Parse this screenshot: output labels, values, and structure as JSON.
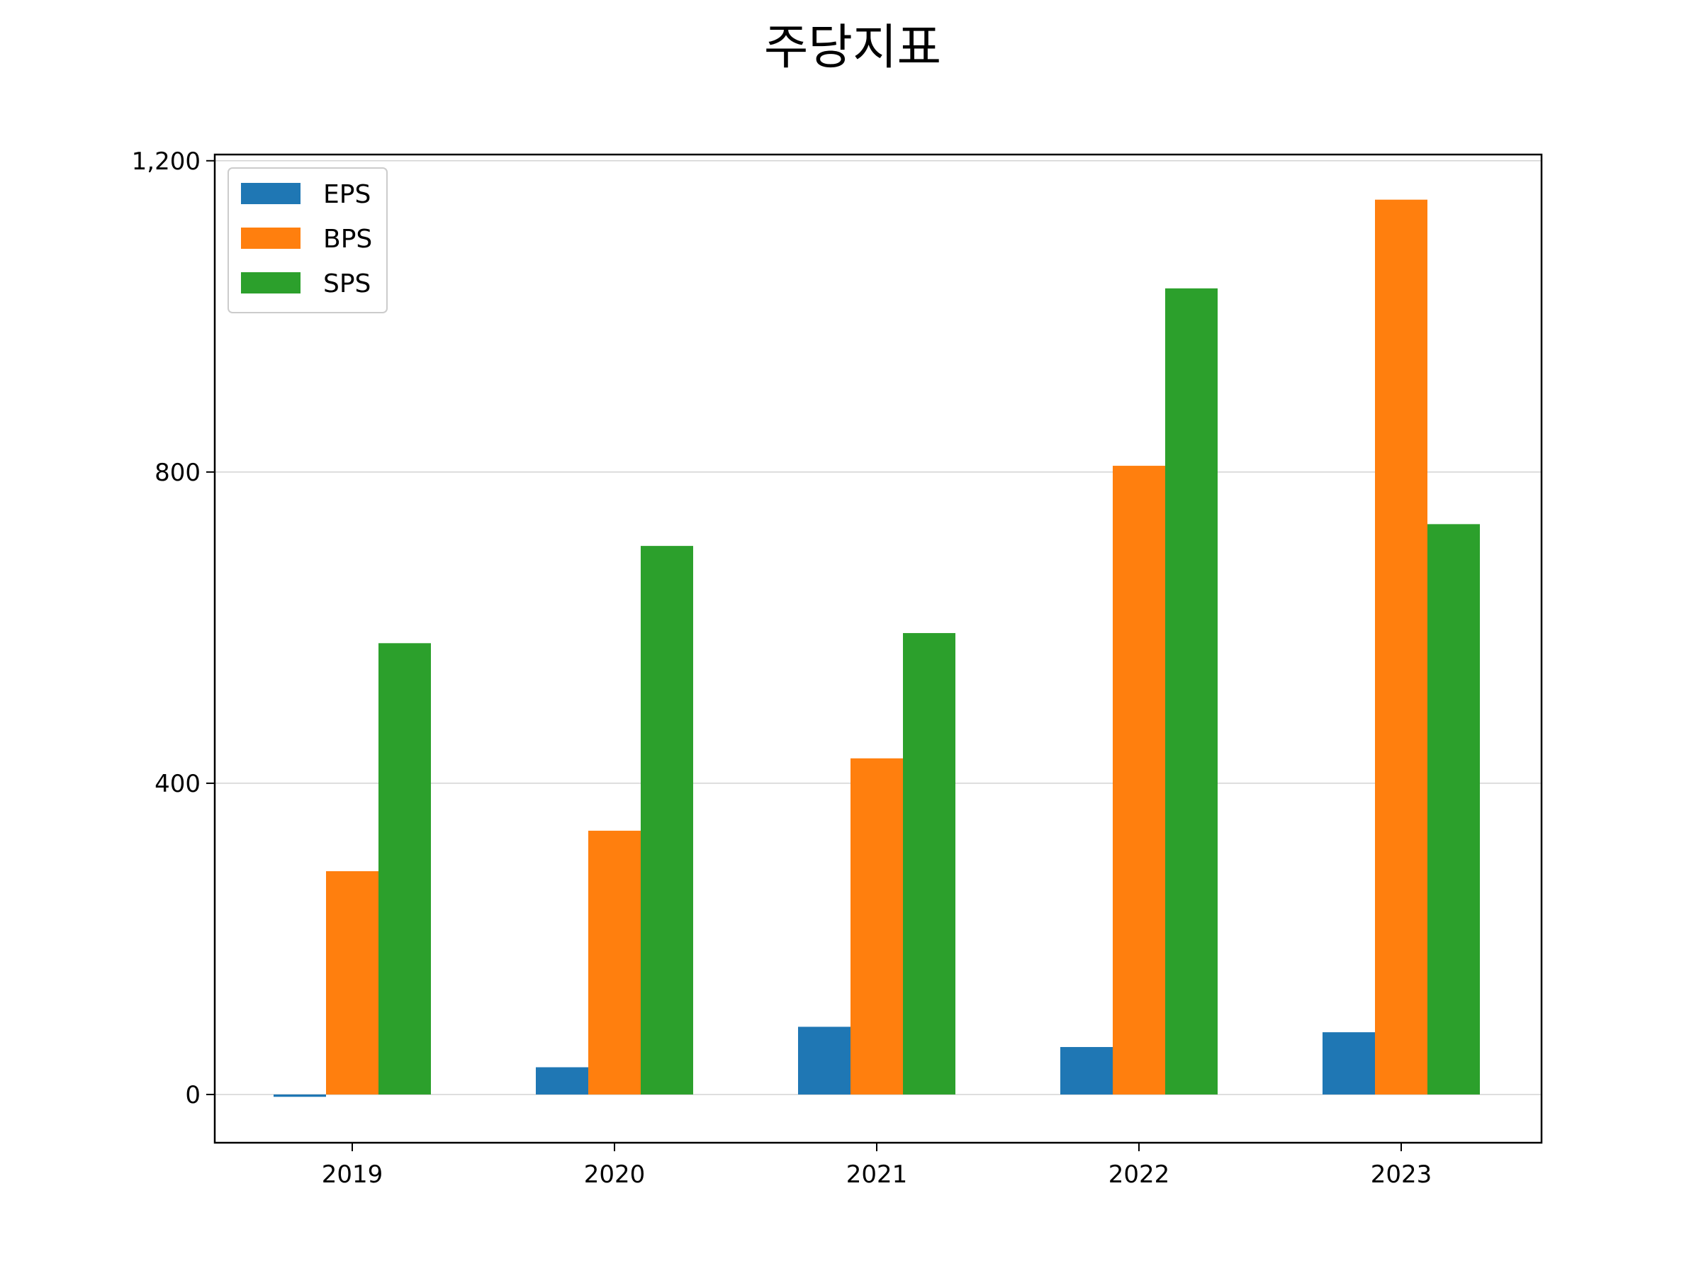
{
  "chart_data": {
    "type": "bar",
    "title": "주당지표",
    "xlabel": "",
    "ylabel": "",
    "categories": [
      "2019",
      "2020",
      "2021",
      "2022",
      "2023"
    ],
    "series": [
      {
        "name": "EPS",
        "color": "#1f77b4",
        "values": [
          -3,
          35,
          87,
          61,
          80
        ]
      },
      {
        "name": "BPS",
        "color": "#ff7f0e",
        "values": [
          287,
          339,
          432,
          808,
          1150
        ]
      },
      {
        "name": "SPS",
        "color": "#2ca02c",
        "values": [
          580,
          705,
          593,
          1036,
          733
        ]
      }
    ],
    "ylim": [
      -62,
      1208
    ],
    "yticks": [
      0,
      400,
      800,
      1200
    ],
    "ytick_labels": [
      "0",
      "400",
      "800",
      "1,200"
    ],
    "grid": "y",
    "legend": "top-left"
  }
}
